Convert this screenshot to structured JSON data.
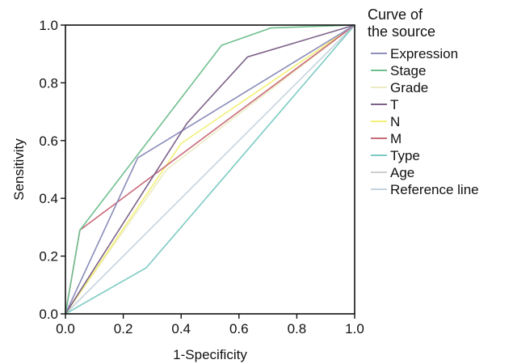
{
  "chart_data": {
    "type": "line",
    "xlabel": "1-Specificity",
    "ylabel": "Sensitivity",
    "xlim": [
      0,
      1
    ],
    "ylim": [
      0,
      1
    ],
    "xticks": [
      "0.0",
      "0.2",
      "0.4",
      "0.6",
      "0.8",
      "1.0"
    ],
    "yticks": [
      "0.0",
      "0.2",
      "0.4",
      "0.6",
      "0.8",
      "1.0"
    ],
    "grid": false,
    "legend": {
      "title_line1": "Curve of",
      "title_line2": "the source",
      "placement": "right"
    },
    "series": [
      {
        "name": "Expression",
        "color": "#8d8fbd",
        "points": [
          [
            0,
            0
          ],
          [
            0.25,
            0.54
          ],
          [
            1,
            1
          ]
        ]
      },
      {
        "name": "Stage",
        "color": "#6fbf8e",
        "points": [
          [
            0,
            0
          ],
          [
            0.05,
            0.29
          ],
          [
            0.54,
            0.93
          ],
          [
            0.71,
            0.99
          ],
          [
            1,
            1
          ]
        ]
      },
      {
        "name": "Grade",
        "color": "#ecebc4",
        "points": [
          [
            0,
            0
          ],
          [
            0.35,
            0.5
          ],
          [
            1,
            1
          ]
        ]
      },
      {
        "name": "T",
        "color": "#7d6289",
        "points": [
          [
            0,
            0
          ],
          [
            0.42,
            0.66
          ],
          [
            0.63,
            0.89
          ],
          [
            1,
            1
          ]
        ]
      },
      {
        "name": "N",
        "color": "#f3f077",
        "points": [
          [
            0,
            0
          ],
          [
            0.4,
            0.59
          ],
          [
            1,
            1
          ]
        ]
      },
      {
        "name": "M",
        "color": "#c96a79",
        "points": [
          [
            0,
            0
          ],
          [
            0.05,
            0.29
          ],
          [
            1,
            1
          ]
        ]
      },
      {
        "name": "Type",
        "color": "#7dcbc4",
        "points": [
          [
            0,
            0
          ],
          [
            0.28,
            0.16
          ],
          [
            1,
            1
          ]
        ]
      },
      {
        "name": "Age",
        "color": "#cfcfcf",
        "points": [
          [
            0,
            0
          ],
          [
            0.25,
            0.54
          ],
          [
            1,
            1
          ]
        ]
      },
      {
        "name": "Reference line",
        "color": "#c6d3de",
        "points": [
          [
            0,
            0
          ],
          [
            1,
            1
          ]
        ]
      }
    ]
  }
}
